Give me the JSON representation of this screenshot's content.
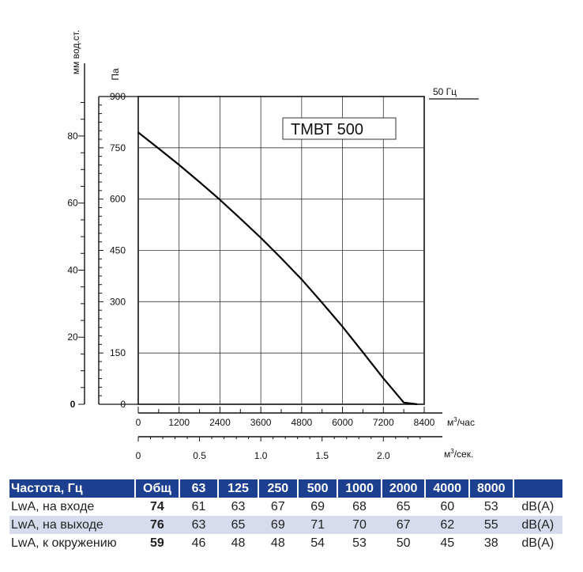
{
  "chart_data": {
    "type": "line",
    "title": "ТМВТ 500",
    "frequency_label": "50 Гц",
    "x_unit": "м³/час",
    "x_unit_base": "м",
    "x_unit_sup": "3",
    "x_unit_tail": "/час",
    "x2_unit": "м³/сек.",
    "x2_unit_base": "м",
    "x2_unit_sup": "3",
    "x2_unit_tail": "/сек.",
    "y_unit": "Па",
    "y2_unit": "мм вод.ст.",
    "xlim": [
      0,
      8400
    ],
    "ylim": [
      0,
      900
    ],
    "x_ticks": [
      "0",
      "1200",
      "2400",
      "3600",
      "4800",
      "6000",
      "7200",
      "8400"
    ],
    "y_ticks": [
      "0",
      "150",
      "300",
      "450",
      "600",
      "750",
      "900"
    ],
    "y2_ticks": [
      "0",
      "20",
      "40",
      "60",
      "80"
    ],
    "x2_ticks": [
      "0",
      "0.5",
      "1.0",
      "1.5",
      "2.0"
    ],
    "grid": true,
    "series": [
      {
        "x": [
          0,
          600,
          1200,
          1800,
          2400,
          3000,
          3600,
          4200,
          4800,
          5400,
          6000,
          6600,
          7200,
          7800,
          8200
        ],
        "values": [
          795,
          748,
          700,
          650,
          598,
          543,
          487,
          427,
          365,
          297,
          227,
          152,
          76,
          5,
          -10
        ]
      }
    ]
  },
  "table": {
    "header": [
      "Частота, Гц",
      "Общ",
      "63",
      "125",
      "250",
      "500",
      "1000",
      "2000",
      "4000",
      "8000",
      ""
    ],
    "rows": [
      {
        "label": "LwA, на входе",
        "total": "74",
        "values": [
          "61",
          "63",
          "67",
          "69",
          "68",
          "65",
          "60",
          "53"
        ],
        "unit": "dB(A)"
      },
      {
        "label": "LwA, на выходе",
        "total": "76",
        "values": [
          "63",
          "65",
          "69",
          "71",
          "70",
          "67",
          "62",
          "55"
        ],
        "unit": "dB(A)"
      },
      {
        "label": "LwA, к окружению",
        "total": "59",
        "values": [
          "46",
          "48",
          "48",
          "54",
          "53",
          "50",
          "45",
          "38"
        ],
        "unit": "dB(A)"
      }
    ]
  }
}
